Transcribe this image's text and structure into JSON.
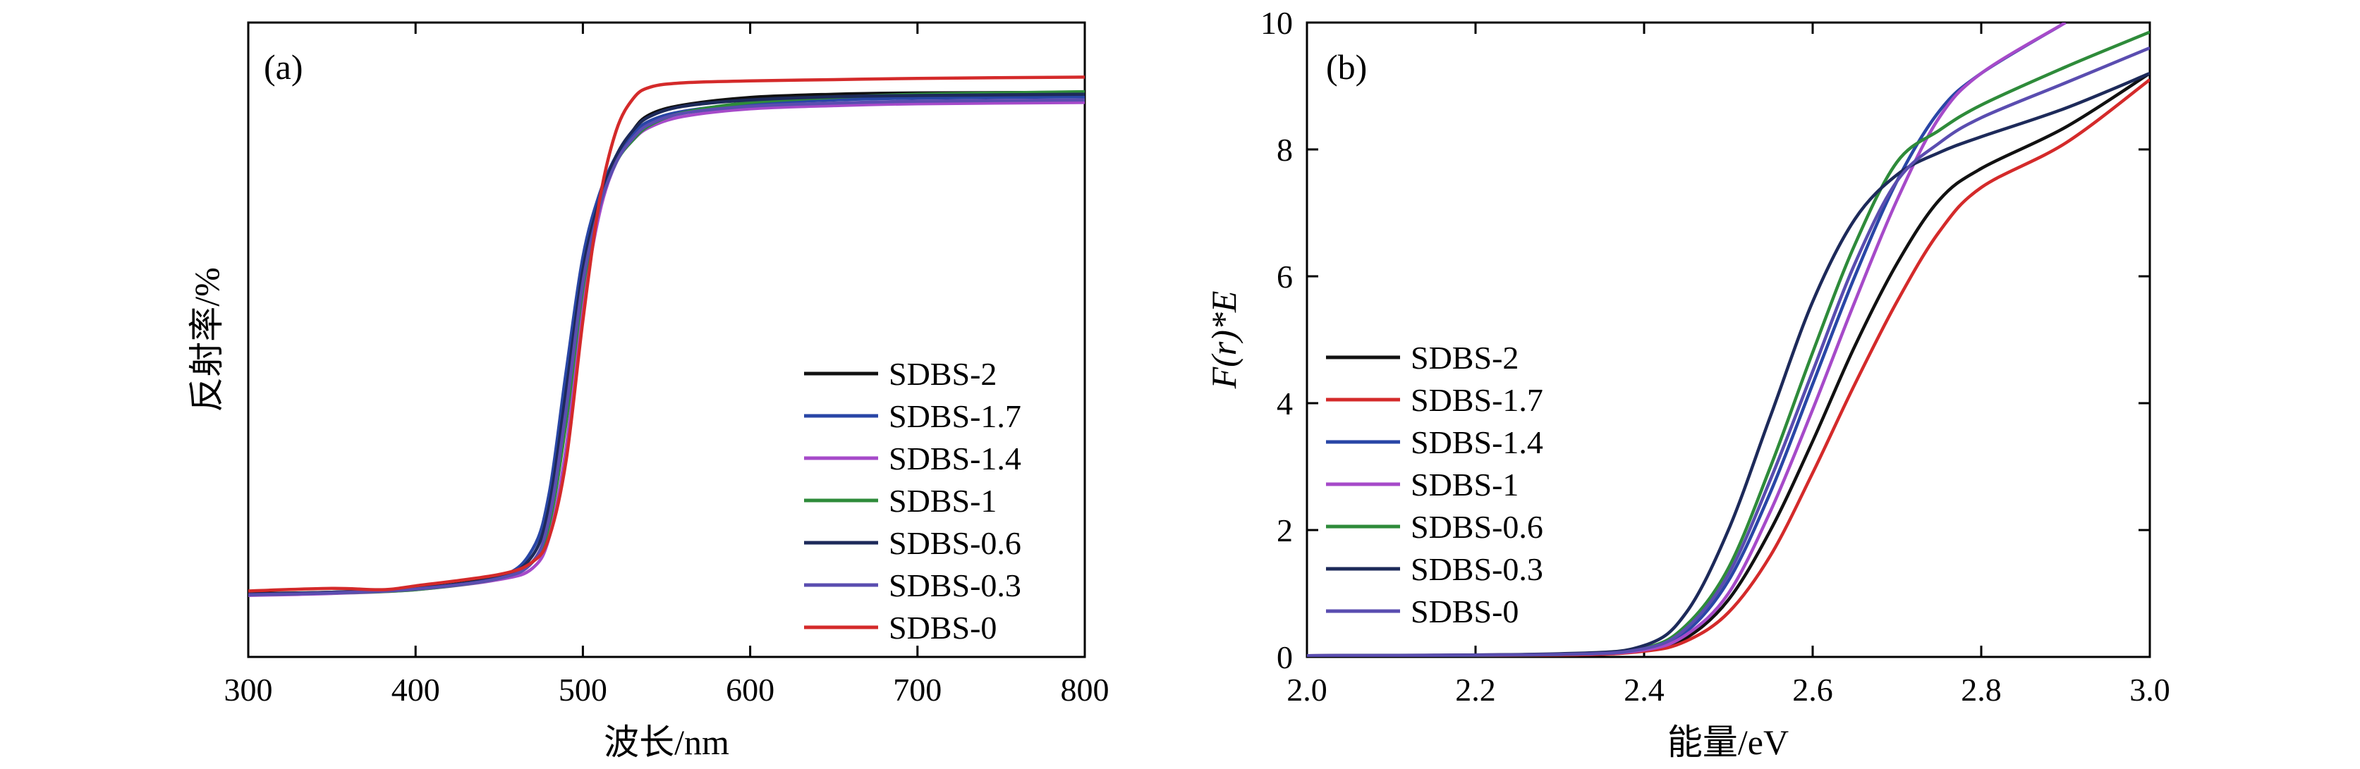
{
  "chart_data": [
    {
      "type": "line",
      "panel_label": "(a)",
      "xlabel": "波长/nm",
      "ylabel": "反射率/%",
      "xlim": [
        300,
        800
      ],
      "ylim": [
        0,
        1
      ],
      "xticks": [
        300,
        400,
        500,
        600,
        700,
        800
      ],
      "yticks_shown": false,
      "legend_position": "right-center",
      "series": [
        {
          "name": "SDBS-2",
          "color": "#111111",
          "points": [
            [
              300,
              0.1
            ],
            [
              350,
              0.102
            ],
            [
              400,
              0.108
            ],
            [
              450,
              0.126
            ],
            [
              470,
              0.15
            ],
            [
              480,
              0.22
            ],
            [
              490,
              0.4
            ],
            [
              500,
              0.6
            ],
            [
              510,
              0.72
            ],
            [
              520,
              0.78
            ],
            [
              530,
              0.83
            ],
            [
              540,
              0.855
            ],
            [
              560,
              0.87
            ],
            [
              600,
              0.882
            ],
            [
              650,
              0.887
            ],
            [
              700,
              0.889
            ],
            [
              800,
              0.89
            ]
          ]
        },
        {
          "name": "SDBS-1.7",
          "color": "#2946a6",
          "points": [
            [
              300,
              0.099
            ],
            [
              350,
              0.102
            ],
            [
              400,
              0.108
            ],
            [
              450,
              0.126
            ],
            [
              470,
              0.17
            ],
            [
              480,
              0.26
            ],
            [
              490,
              0.45
            ],
            [
              500,
              0.63
            ],
            [
              510,
              0.73
            ],
            [
              520,
              0.79
            ],
            [
              530,
              0.825
            ],
            [
              540,
              0.845
            ],
            [
              560,
              0.86
            ],
            [
              600,
              0.872
            ],
            [
              650,
              0.878
            ],
            [
              700,
              0.881
            ],
            [
              800,
              0.883
            ]
          ]
        },
        {
          "name": "SDBS-1.4",
          "color": "#a64ac9",
          "points": [
            [
              300,
              0.097
            ],
            [
              350,
              0.1
            ],
            [
              400,
              0.106
            ],
            [
              450,
              0.122
            ],
            [
              470,
              0.14
            ],
            [
              480,
              0.19
            ],
            [
              490,
              0.33
            ],
            [
              500,
              0.55
            ],
            [
              510,
              0.7
            ],
            [
              520,
              0.78
            ],
            [
              530,
              0.815
            ],
            [
              540,
              0.835
            ],
            [
              560,
              0.852
            ],
            [
              600,
              0.864
            ],
            [
              650,
              0.869
            ],
            [
              700,
              0.872
            ],
            [
              800,
              0.874
            ]
          ]
        },
        {
          "name": "SDBS-1",
          "color": "#2e8b3a",
          "points": [
            [
              300,
              0.098
            ],
            [
              350,
              0.101
            ],
            [
              400,
              0.106
            ],
            [
              450,
              0.124
            ],
            [
              470,
              0.15
            ],
            [
              480,
              0.21
            ],
            [
              490,
              0.37
            ],
            [
              500,
              0.58
            ],
            [
              510,
              0.71
            ],
            [
              520,
              0.78
            ],
            [
              530,
              0.815
            ],
            [
              540,
              0.838
            ],
            [
              560,
              0.858
            ],
            [
              600,
              0.874
            ],
            [
              650,
              0.882
            ],
            [
              700,
              0.887
            ],
            [
              800,
              0.891
            ]
          ]
        },
        {
          "name": "SDBS-0.6",
          "color": "#1d2a5a",
          "points": [
            [
              300,
              0.099
            ],
            [
              350,
              0.102
            ],
            [
              400,
              0.108
            ],
            [
              450,
              0.126
            ],
            [
              470,
              0.16
            ],
            [
              480,
              0.24
            ],
            [
              490,
              0.42
            ],
            [
              500,
              0.61
            ],
            [
              510,
              0.72
            ],
            [
              520,
              0.79
            ],
            [
              530,
              0.83
            ],
            [
              540,
              0.852
            ],
            [
              560,
              0.868
            ],
            [
              600,
              0.878
            ],
            [
              650,
              0.883
            ],
            [
              700,
              0.885
            ],
            [
              800,
              0.887
            ]
          ]
        },
        {
          "name": "SDBS-0.3",
          "color": "#5a4db0",
          "points": [
            [
              300,
              0.098
            ],
            [
              350,
              0.101
            ],
            [
              400,
              0.107
            ],
            [
              450,
              0.124
            ],
            [
              470,
              0.15
            ],
            [
              480,
              0.22
            ],
            [
              490,
              0.39
            ],
            [
              500,
              0.59
            ],
            [
              510,
              0.71
            ],
            [
              520,
              0.78
            ],
            [
              530,
              0.818
            ],
            [
              540,
              0.84
            ],
            [
              560,
              0.857
            ],
            [
              600,
              0.868
            ],
            [
              650,
              0.873
            ],
            [
              700,
              0.876
            ],
            [
              800,
              0.878
            ]
          ]
        },
        {
          "name": "SDBS-0",
          "color": "#d42a2a",
          "points": [
            [
              300,
              0.104
            ],
            [
              350,
              0.108
            ],
            [
              380,
              0.106
            ],
            [
              400,
              0.112
            ],
            [
              450,
              0.13
            ],
            [
              470,
              0.15
            ],
            [
              480,
              0.19
            ],
            [
              490,
              0.31
            ],
            [
              500,
              0.53
            ],
            [
              510,
              0.72
            ],
            [
              520,
              0.83
            ],
            [
              530,
              0.88
            ],
            [
              540,
              0.898
            ],
            [
              560,
              0.905
            ],
            [
              600,
              0.908
            ],
            [
              650,
              0.91
            ],
            [
              700,
              0.912
            ],
            [
              800,
              0.914
            ]
          ]
        }
      ]
    },
    {
      "type": "line",
      "panel_label": "(b)",
      "xlabel": "能量/eV",
      "ylabel": "F(r)*E",
      "xlim": [
        2.0,
        3.0
      ],
      "ylim": [
        0,
        10
      ],
      "xticks": [
        2.0,
        2.2,
        2.4,
        2.6,
        2.8,
        3.0
      ],
      "yticks": [
        0,
        2,
        4,
        6,
        8,
        10
      ],
      "legend_position": "left-center",
      "series": [
        {
          "name": "SDBS-2",
          "color": "#111111",
          "points": [
            [
              2.0,
              0.02
            ],
            [
              2.3,
              0.03
            ],
            [
              2.4,
              0.1
            ],
            [
              2.45,
              0.3
            ],
            [
              2.5,
              0.9
            ],
            [
              2.55,
              2.0
            ],
            [
              2.6,
              3.4
            ],
            [
              2.65,
              4.9
            ],
            [
              2.7,
              6.2
            ],
            [
              2.75,
              7.2
            ],
            [
              2.8,
              7.7
            ],
            [
              2.9,
              8.35
            ],
            [
              3.0,
              9.2
            ]
          ]
        },
        {
          "name": "SDBS-1.7",
          "color": "#d42a2a",
          "points": [
            [
              2.0,
              0.02
            ],
            [
              2.3,
              0.03
            ],
            [
              2.4,
              0.09
            ],
            [
              2.45,
              0.25
            ],
            [
              2.5,
              0.7
            ],
            [
              2.55,
              1.6
            ],
            [
              2.6,
              2.9
            ],
            [
              2.65,
              4.3
            ],
            [
              2.7,
              5.6
            ],
            [
              2.75,
              6.7
            ],
            [
              2.8,
              7.4
            ],
            [
              2.9,
              8.1
            ],
            [
              3.0,
              9.1
            ]
          ]
        },
        {
          "name": "SDBS-1.4",
          "color": "#2946a6",
          "points": [
            [
              2.0,
              0.02
            ],
            [
              2.3,
              0.04
            ],
            [
              2.4,
              0.12
            ],
            [
              2.45,
              0.4
            ],
            [
              2.5,
              1.2
            ],
            [
              2.55,
              2.6
            ],
            [
              2.6,
              4.3
            ],
            [
              2.65,
              6.0
            ],
            [
              2.7,
              7.5
            ],
            [
              2.75,
              8.6
            ],
            [
              2.8,
              9.2
            ],
            [
              2.9,
              10.0
            ]
          ]
        },
        {
          "name": "SDBS-1",
          "color": "#a64ac9",
          "points": [
            [
              2.0,
              0.02
            ],
            [
              2.3,
              0.04
            ],
            [
              2.4,
              0.11
            ],
            [
              2.45,
              0.35
            ],
            [
              2.5,
              1.0
            ],
            [
              2.55,
              2.3
            ],
            [
              2.6,
              3.9
            ],
            [
              2.65,
              5.6
            ],
            [
              2.7,
              7.2
            ],
            [
              2.75,
              8.5
            ],
            [
              2.8,
              9.2
            ],
            [
              2.9,
              10.0
            ]
          ]
        },
        {
          "name": "SDBS-0.6",
          "color": "#2e8b3a",
          "points": [
            [
              2.0,
              0.02
            ],
            [
              2.3,
              0.04
            ],
            [
              2.4,
              0.14
            ],
            [
              2.45,
              0.5
            ],
            [
              2.5,
              1.4
            ],
            [
              2.55,
              3.0
            ],
            [
              2.6,
              4.8
            ],
            [
              2.65,
              6.5
            ],
            [
              2.7,
              7.8
            ],
            [
              2.75,
              8.3
            ],
            [
              2.8,
              8.7
            ],
            [
              2.9,
              9.3
            ],
            [
              3.0,
              9.85
            ]
          ]
        },
        {
          "name": "SDBS-0.3",
          "color": "#1d2a5a",
          "points": [
            [
              2.0,
              0.02
            ],
            [
              2.3,
              0.05
            ],
            [
              2.4,
              0.18
            ],
            [
              2.45,
              0.7
            ],
            [
              2.5,
              2.0
            ],
            [
              2.55,
              3.8
            ],
            [
              2.6,
              5.6
            ],
            [
              2.65,
              6.9
            ],
            [
              2.7,
              7.6
            ],
            [
              2.75,
              7.95
            ],
            [
              2.8,
              8.2
            ],
            [
              2.9,
              8.65
            ],
            [
              3.0,
              9.2
            ]
          ]
        },
        {
          "name": "SDBS-0",
          "color": "#5a4db0",
          "points": [
            [
              2.0,
              0.02
            ],
            [
              2.3,
              0.04
            ],
            [
              2.4,
              0.13
            ],
            [
              2.45,
              0.45
            ],
            [
              2.5,
              1.3
            ],
            [
              2.55,
              2.8
            ],
            [
              2.6,
              4.5
            ],
            [
              2.65,
              6.2
            ],
            [
              2.7,
              7.5
            ],
            [
              2.75,
              8.1
            ],
            [
              2.8,
              8.5
            ],
            [
              2.9,
              9.05
            ],
            [
              3.0,
              9.6
            ]
          ]
        }
      ]
    }
  ]
}
